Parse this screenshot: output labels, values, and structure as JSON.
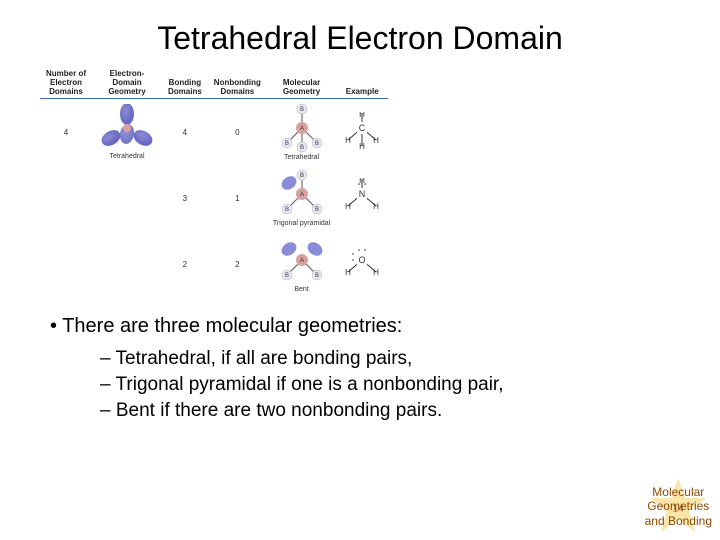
{
  "title": "Tetrahedral Electron Domain",
  "table": {
    "headers": [
      "Number of\nElectron\nDomains",
      "Electron-\nDomain\nGeometry",
      "Bonding\nDomains",
      "Nonbonding\nDomains",
      "Molecular\nGeometry",
      "Example"
    ],
    "rows": [
      {
        "num_domains": "4",
        "ed_geometry_label": "Tetrahedral",
        "bonding": "4",
        "nonbonding": "0",
        "mol_geometry_label": "Tetrahedral",
        "mol_labels": [
          "B",
          "B",
          "A",
          "B",
          "B"
        ],
        "example_center": "C",
        "example_outer": [
          "H",
          "H",
          "H",
          "H"
        ],
        "lone_pairs_on_center": 0
      },
      {
        "num_domains": "",
        "ed_geometry_label": "",
        "bonding": "3",
        "nonbonding": "1",
        "mol_geometry_label": "Trigonal pyramidal",
        "mol_labels": [
          "",
          "B",
          "A",
          "B",
          "B"
        ],
        "example_center": "N",
        "example_outer": [
          "H",
          "H",
          "H"
        ],
        "lone_pairs_on_center": 1
      },
      {
        "num_domains": "",
        "ed_geometry_label": "",
        "bonding": "2",
        "nonbonding": "2",
        "mol_geometry_label": "Bent",
        "mol_labels": [
          "",
          "",
          "A",
          "B",
          "B"
        ],
        "example_center": "O",
        "example_outer": [
          "H",
          "H"
        ],
        "lone_pairs_on_center": 2
      }
    ]
  },
  "colors": {
    "lobe": "#8b8cd9",
    "lobe_dark": "#6a6bc0",
    "atom": "#d9a0a0",
    "header_rule": "#3a6fb0",
    "footer_text": "#8a4a00",
    "footer_star": "#f5d060"
  },
  "bullet_main": "There are three molecular geometries:",
  "sub_bullets": [
    "Tetrahedral, if all are bonding pairs,",
    "Trigonal pyramidal if one is a nonbonding pair,",
    "Bent if there are two nonbonding pairs."
  ],
  "footer": {
    "line1": "Molecular",
    "line2": "Geometries",
    "line3": "and Bonding",
    "page": "14"
  }
}
